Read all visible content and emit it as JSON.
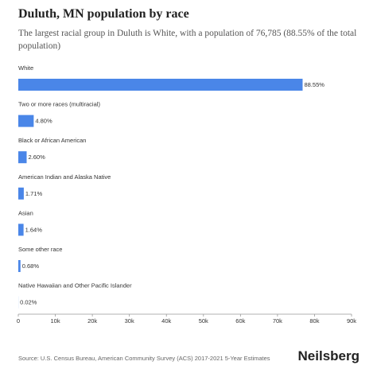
{
  "chart_data": {
    "type": "hbar",
    "title": "Duluth, MN population by race",
    "subtitle": "The largest racial group in Duluth is White, with a population of 76,785 (88.55% of the total population)",
    "categories": [
      "White",
      "Two or more races (multiracial)",
      "Black or African American",
      "American Indian and Alaska Native",
      "Asian",
      "Some other race",
      "Native Hawaiian and Other Pacific Islander"
    ],
    "values": [
      76785,
      4162,
      2255,
      1483,
      1422,
      590,
      17
    ],
    "value_labels": [
      "88.55%",
      "4.80%",
      "2.60%",
      "1.71%",
      "1.64%",
      "0.68%",
      "0.02%"
    ],
    "color": "#4a86e8",
    "xlim": [
      0,
      90000
    ],
    "xticks": [
      0,
      {
        "value": 10000,
        "label": "10k"
      },
      {
        "value": 20000,
        "label": "20k"
      },
      {
        "value": 30000,
        "label": "30k"
      },
      {
        "value": 40000,
        "label": "40k"
      },
      {
        "value": 50000,
        "label": "50k"
      },
      {
        "value": 60000,
        "label": "60k"
      },
      {
        "value": 70000,
        "label": "70k"
      },
      {
        "value": 80000,
        "label": "80k"
      },
      {
        "value": 90000,
        "label": "90k"
      }
    ],
    "source": "Source: U.S. Census Bureau, American Community Survey (ACS) 2017-2021 5-Year Estimates",
    "brand": "Neilsberg"
  }
}
